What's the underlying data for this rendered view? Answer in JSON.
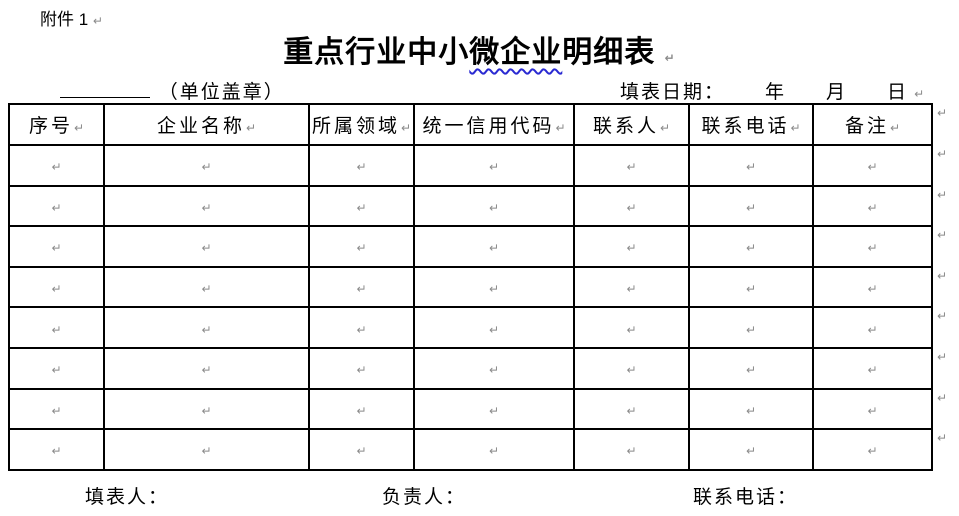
{
  "page": {
    "attachment_label": "附件 1",
    "title": {
      "part1": "重点行业中小",
      "misspell_underlined": "微企业",
      "part2": "明细表"
    },
    "stamp_note": "（单位盖章）",
    "date": {
      "label": "填表日期：",
      "year": "年",
      "month": "月",
      "day": "日"
    }
  },
  "table": {
    "headers": [
      "序号",
      "企业名称",
      "所属领域",
      "统一信用代码",
      "联系人",
      "联系电话",
      "备注"
    ],
    "empty_row_count": 8
  },
  "footer": {
    "preparer_label": "填表人：",
    "responsible_label": "负责人：",
    "phone_label": "联系电话："
  },
  "marks": {
    "paragraph_mark": "↵"
  },
  "colors": {
    "misspell_underline": "#2a2ad2",
    "paragraph_mark": "#8a8a8a",
    "table_border": "#000000"
  }
}
